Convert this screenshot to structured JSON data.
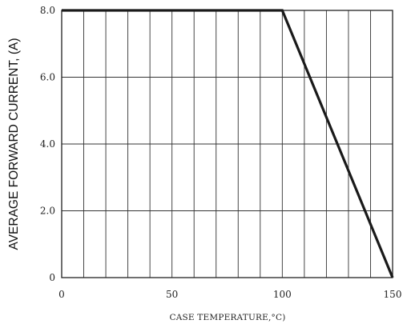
{
  "chart_data": {
    "type": "line",
    "title": "",
    "xlabel": "CASE TEMPERATURE,°C)",
    "ylabel": "AVERAGE FORWARD CURRENT, (A)",
    "xlim": [
      0,
      150
    ],
    "ylim": [
      0,
      8
    ],
    "x_ticks": [
      0,
      50,
      100,
      150
    ],
    "x_tick_labels": [
      "0",
      "50",
      "100",
      "150"
    ],
    "y_ticks": [
      0,
      2,
      4,
      6,
      8
    ],
    "y_tick_labels": [
      "0",
      "2.0",
      "4.0",
      "6.0",
      "8.0"
    ],
    "grid": true,
    "x_grid_step": 10,
    "y_grid_step": 2,
    "legend": "none",
    "series": [
      {
        "x": [
          0,
          100,
          150
        ],
        "y": [
          8.0,
          8.0,
          0
        ]
      }
    ],
    "colors": {
      "line": "#1a1a1a",
      "grid": "#333333",
      "axis": "#222222"
    }
  }
}
